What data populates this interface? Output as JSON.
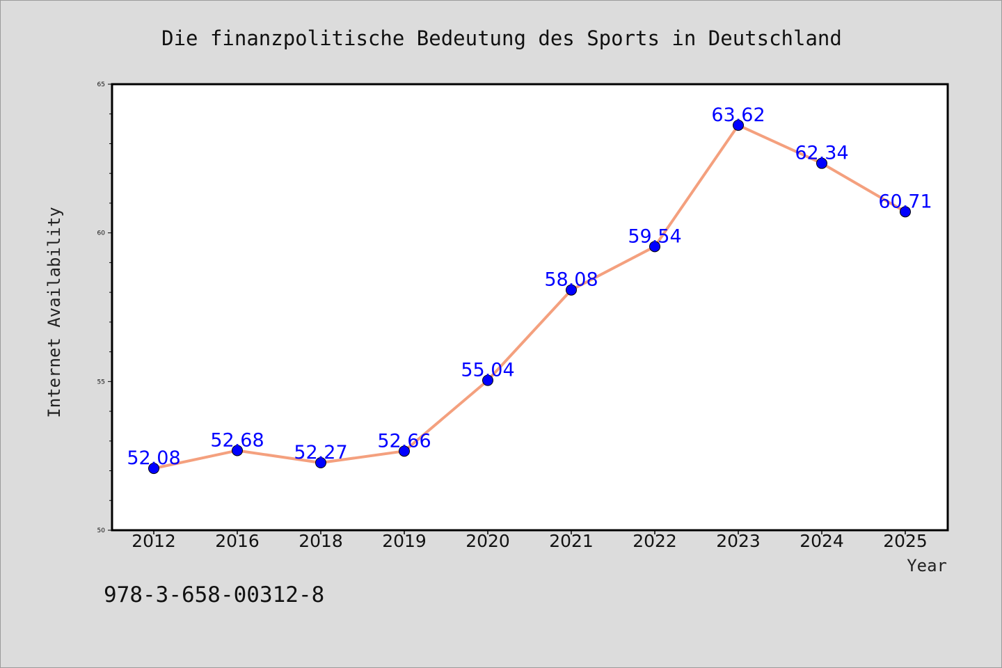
{
  "chart_data": {
    "type": "line",
    "title": "Die finanzpolitische Bedeutung des Sports in Deutschland",
    "xlabel": "Year",
    "ylabel": "Internet Availability",
    "categories": [
      "2012",
      "2016",
      "2018",
      "2019",
      "2020",
      "2021",
      "2022",
      "2023",
      "2024",
      "2025"
    ],
    "series": [
      {
        "values": [
          52.08,
          52.68,
          52.27,
          52.66,
          55.04,
          58.08,
          59.54,
          63.62,
          62.34,
          60.71
        ],
        "labels": [
          "52.08",
          "52.68",
          "52.27",
          "52.66",
          "55.04",
          "58.08",
          "59.54",
          "63.62",
          "62.34",
          "60.71"
        ],
        "line_color": "#f4a07e",
        "marker_color": "#0000ff"
      }
    ],
    "ylim": [
      50,
      65
    ],
    "yticks": [
      "50",
      "55",
      "60",
      "65"
    ],
    "grid": false,
    "legend": "none"
  },
  "footer": {
    "isbn": "978-3-658-00312-8"
  },
  "colors": {
    "background": "#dcdcdc",
    "plot_background": "#ffffff",
    "line": "#f4a07e",
    "marker": "#0000ff",
    "data_label": "#0000ff"
  }
}
